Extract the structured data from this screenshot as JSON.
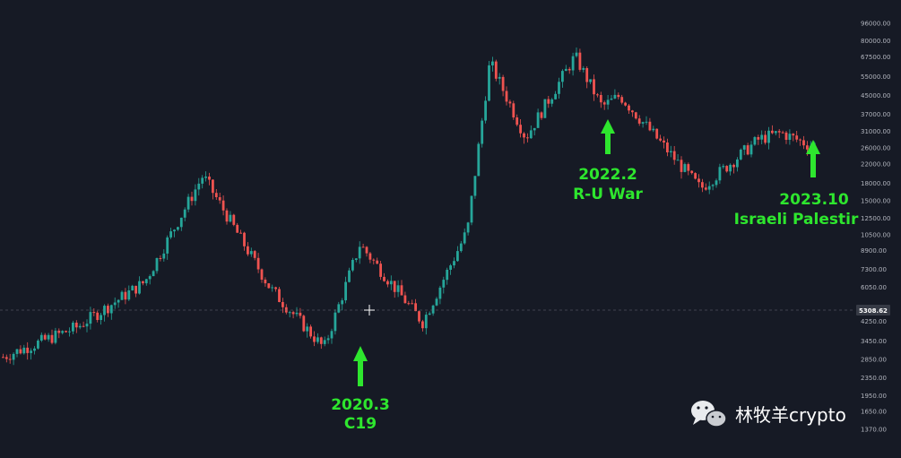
{
  "chart_data": {
    "type": "candlestick",
    "title": "",
    "xlabel": "",
    "ylabel": "",
    "scale": "log",
    "ylim": [
      1250,
      100000
    ],
    "grid": false,
    "y_ticks": [
      96000,
      80000,
      67500,
      55000,
      45000,
      37000,
      31000,
      26000,
      22000,
      18000,
      15000,
      12500,
      10500,
      8900,
      7300,
      6050,
      4250,
      3450,
      2850,
      2350,
      1950,
      1650,
      1370
    ],
    "y_tick_labels": [
      "96000.00",
      "80000.00",
      "67500.00",
      "55000.00",
      "45000.00",
      "37000.00",
      "31000.00",
      "26000.00",
      "22000.00",
      "18000.00",
      "15000.00",
      "12500.00",
      "10500.00",
      "8900.00",
      "7300.00",
      "6050.00",
      "4250.00",
      "3450.00",
      "2850.00",
      "2350.00",
      "1950.00",
      "1650.00",
      "1370.00"
    ],
    "crosshair_price": 5308.62,
    "crosshair_label": "5308.62",
    "colors": {
      "up": "#26a69a",
      "down": "#ef5350",
      "background": "#161a25",
      "annotation": "#2ee62e",
      "axis_text": "#b2b5be"
    },
    "annotations": [
      {
        "line1": "2020.3",
        "line2": "C19",
        "arrow": "up-from-below"
      },
      {
        "line1": "2022.2",
        "line2": "R-U War",
        "arrow": "up-from-below"
      },
      {
        "line1": "2023.10",
        "line2": "Israeli Palestir",
        "arrow": "up-from-below"
      }
    ],
    "key_prices_approx": [
      2900,
      4000,
      6400,
      19500,
      6000,
      3200,
      9500,
      4200,
      11000,
      64000,
      29000,
      68000,
      40000,
      45000,
      17000,
      28500,
      30500,
      27000
    ]
  },
  "watermark": {
    "text": "林牧羊crypto",
    "icon": "wechat-icon"
  }
}
